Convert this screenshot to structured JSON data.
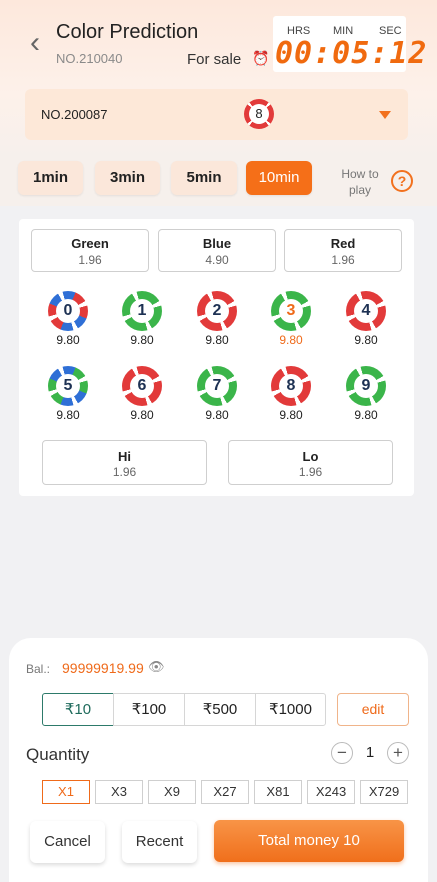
{
  "header": {
    "back_icon": "chevron-left-icon",
    "title": "Color Prediction",
    "issue_number": "NO.210040",
    "status": "For sale",
    "alarm_icon": "alarm-clock-icon",
    "timer": {
      "hrs_label": "HRS",
      "min_label": "MIN",
      "sec_label": "SEC",
      "value": "00:05:12"
    }
  },
  "current_issue": {
    "number": "NO.200087",
    "result_ball": "8",
    "dropdown_icon": "caret-down-icon"
  },
  "time_tabs": [
    {
      "label": "1min",
      "active": false
    },
    {
      "label": "3min",
      "active": false
    },
    {
      "label": "5min",
      "active": false
    },
    {
      "label": "10min",
      "active": true
    }
  ],
  "how_to_play": "How to play",
  "help_icon": "question-circle-icon",
  "colors": [
    {
      "name": "Green",
      "odds": "1.96"
    },
    {
      "name": "Blue",
      "odds": "4.90"
    },
    {
      "name": "Red",
      "odds": "1.96"
    }
  ],
  "numbers": [
    {
      "num": "0",
      "odds": "9.80"
    },
    {
      "num": "1",
      "odds": "9.80"
    },
    {
      "num": "2",
      "odds": "9.80"
    },
    {
      "num": "3",
      "odds": "9.80"
    },
    {
      "num": "4",
      "odds": "9.80"
    },
    {
      "num": "5",
      "odds": "9.80"
    },
    {
      "num": "6",
      "odds": "9.80"
    },
    {
      "num": "7",
      "odds": "9.80"
    },
    {
      "num": "8",
      "odds": "9.80"
    },
    {
      "num": "9",
      "odds": "9.80"
    }
  ],
  "hilo": [
    {
      "name": "Hi",
      "odds": "1.96"
    },
    {
      "name": "Lo",
      "odds": "1.96"
    }
  ],
  "bet": {
    "balance_label": "Bal.:",
    "balance": "99999919.99",
    "eye_icon": "eye-icon",
    "amounts": [
      "₹10",
      "₹100",
      "₹500",
      "₹1000"
    ],
    "selected_amount": "₹10",
    "edit_label": "edit",
    "quantity_label": "Quantity",
    "minus": "−",
    "plus": "+",
    "quantity": "1",
    "multipliers": [
      "X1",
      "X3",
      "X9",
      "X27",
      "X81",
      "X243",
      "X729"
    ],
    "selected_multiplier": "X1",
    "cancel_label": "Cancel",
    "recent_label": "Recent",
    "total_label": "Total money 10"
  },
  "colors_hex": {
    "accent": "#f56f18",
    "red": "#e23a3a",
    "green": "#3bb54a",
    "blue": "#2f6fd6"
  }
}
